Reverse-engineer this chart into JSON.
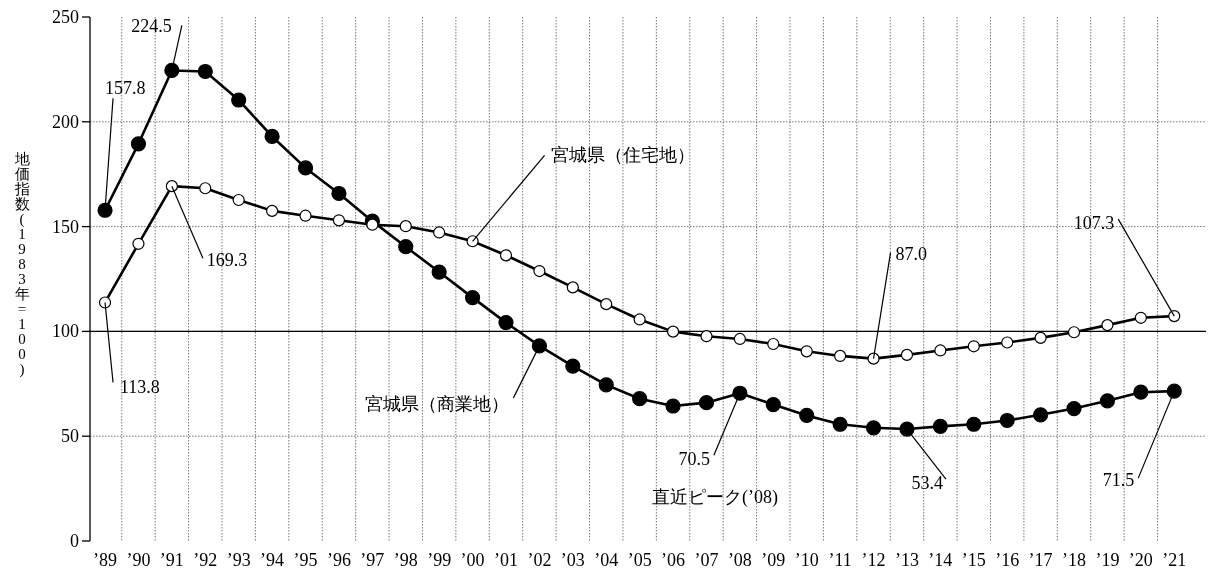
{
  "chart_data": {
    "type": "line",
    "ylabel": "地価指数(1983年=100)",
    "categories": [
      "’89",
      "’90",
      "’91",
      "’92",
      "’93",
      "’94",
      "’95",
      "’96",
      "’97",
      "’98",
      "’99",
      "’00",
      "’01",
      "’02",
      "’03",
      "’04",
      "’05",
      "’06",
      "’07",
      "’08",
      "’09",
      "’10",
      "’11",
      "’12",
      "’13",
      "’14",
      "’15",
      "’16",
      "’17",
      "’18",
      "’19",
      "’20",
      "’21"
    ],
    "series": [
      {
        "name": "宮城県（商業地）",
        "color": "#000000",
        "values": [
          157.8,
          189.5,
          224.5,
          224,
          210.4,
          193,
          178,
          165.8,
          152.6,
          140.4,
          128.3,
          116.1,
          104.2,
          93.1,
          83.4,
          74.5,
          67.9,
          64.4,
          66.0,
          70.5,
          65.1,
          59.9,
          55.7,
          54.0,
          53.4,
          54.7,
          55.7,
          57.5,
          60.2,
          63.2,
          66.9,
          71.0,
          71.5
        ]
      },
      {
        "name": "宮城県（住宅地）",
        "color": "#000000",
        "values": [
          113.8,
          141.8,
          169.3,
          168.3,
          162.7,
          157.5,
          155.2,
          153,
          150.9,
          150.2,
          147.2,
          143,
          136.3,
          128.8,
          121,
          113,
          105.7,
          99.9,
          97.7,
          96.4,
          94,
          90.5,
          88.3,
          87.0,
          88.8,
          90.9,
          92.9,
          94.7,
          96.9,
          99.6,
          103,
          106.5,
          107.3
        ]
      }
    ],
    "ylim": [
      0,
      250
    ],
    "yticks": [
      0,
      50,
      100,
      150,
      200,
      250
    ],
    "grid": true,
    "marker": "circle",
    "line_style": "solid",
    "ref_lines": [
      {
        "axis": "y",
        "value": 100,
        "color": "#000000",
        "line_style": "solid"
      }
    ],
    "annotations": [
      {
        "text": "157.8",
        "x": "’89",
        "y": 157.8
      },
      {
        "text": "224.5",
        "x": "’91",
        "y": 224.5
      },
      {
        "text": "169.3",
        "x": "’91",
        "y": 169.3
      },
      {
        "text": "113.8",
        "x": "’89",
        "y": 113.8
      },
      {
        "text": "70.5",
        "x": "’08",
        "y": 70.5
      },
      "直近ピーク(’08)",
      {
        "text": "87.0",
        "x": "’12",
        "y": 87.0
      },
      {
        "text": "107.3",
        "x": "’21",
        "y": 107.3
      },
      {
        "text": "53.4",
        "x": "’13",
        "y": 53.4
      },
      {
        "text": "71.5",
        "x": "’21",
        "y": 71.5
      }
    ]
  }
}
